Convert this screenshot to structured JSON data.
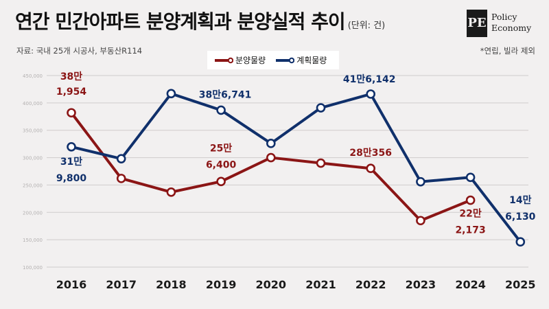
{
  "header": {
    "title": "연간 민간아파트 분양계획과 분양실적 추이",
    "title_unit": "(단위: 건)",
    "source": "자료: 국내 25개 시공사, 부동산R114",
    "note": "*연립, 빌라 제외"
  },
  "logo": {
    "mark": "PE",
    "line1": "Policy",
    "line2": "Economy"
  },
  "legend": {
    "actual": "분양물량",
    "planned": "계획물량"
  },
  "colors": {
    "actual": "#8b1515",
    "planned": "#10306b",
    "grid": "#cfcccc"
  },
  "chart_data": {
    "type": "line",
    "categories": [
      "2016",
      "2017",
      "2018",
      "2019",
      "2020",
      "2021",
      "2022",
      "2023",
      "2024",
      "2025"
    ],
    "ylim": [
      100000,
      450000
    ],
    "yticks": [
      "100,000",
      "150,000",
      "200,000",
      "250,000",
      "300,000",
      "350,000",
      "400,000",
      "450,000"
    ],
    "grid": true,
    "legend_position": "top",
    "series": [
      {
        "name": "분양물량",
        "values": [
          381954,
          262000,
          237000,
          256400,
          300000,
          290000,
          280356,
          185000,
          222173,
          null
        ]
      },
      {
        "name": "계획물량",
        "values": [
          319800,
          298000,
          417000,
          386741,
          326000,
          391000,
          416142,
          256000,
          264000,
          146130
        ]
      }
    ],
    "annotations": [
      {
        "series": 0,
        "index": 0,
        "line1": "38만",
        "line2": "1,954"
      },
      {
        "series": 0,
        "index": 3,
        "line1": "25만",
        "line2": "6,400"
      },
      {
        "series": 0,
        "index": 6,
        "line1": "28만356",
        "line2": ""
      },
      {
        "series": 0,
        "index": 8,
        "line1": "22만",
        "line2": "2,173"
      },
      {
        "series": 1,
        "index": 0,
        "line1": "31만",
        "line2": "9,800"
      },
      {
        "series": 1,
        "index": 3,
        "line1": "38만6,741",
        "line2": ""
      },
      {
        "series": 1,
        "index": 6,
        "line1": "41만6,142",
        "line2": ""
      },
      {
        "series": 1,
        "index": 9,
        "line1": "14만",
        "line2": "6,130"
      }
    ]
  }
}
